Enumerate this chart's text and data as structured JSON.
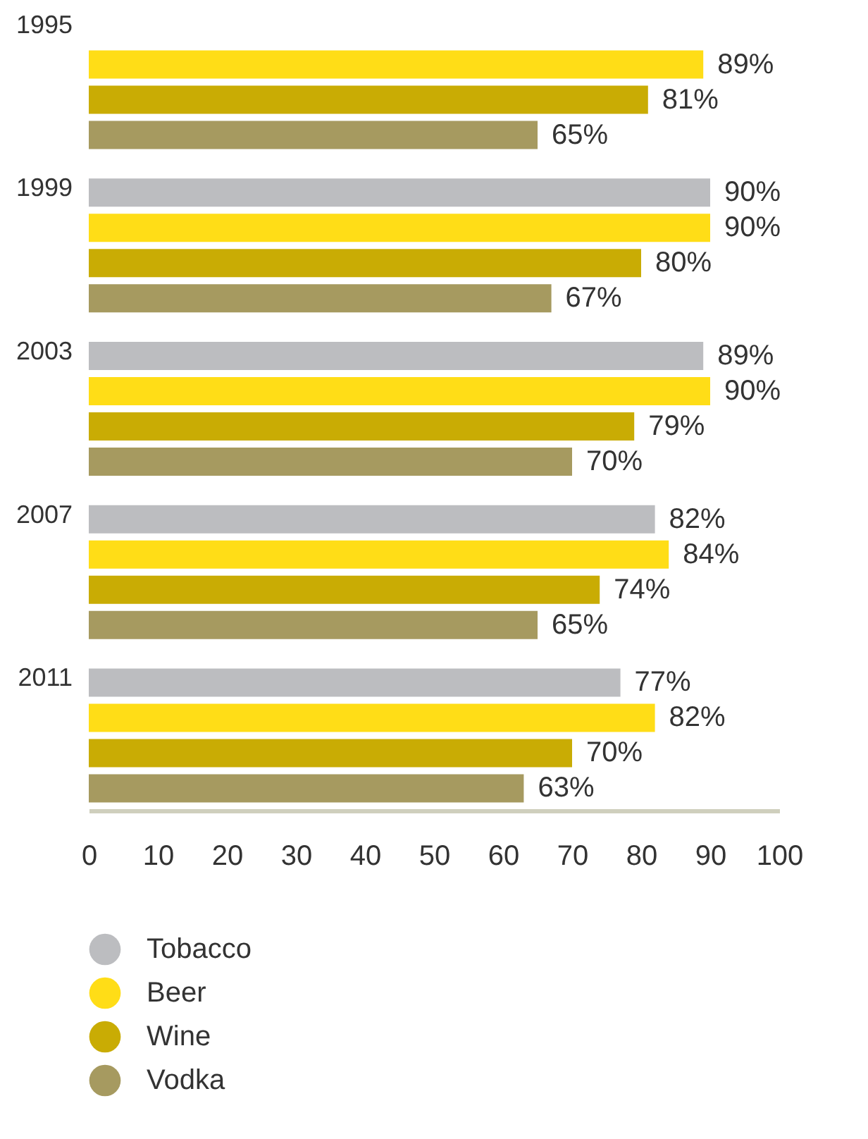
{
  "chart_data": {
    "type": "bar",
    "orientation": "horizontal",
    "categories": [
      "1995",
      "1999",
      "2003",
      "2007",
      "2011"
    ],
    "series": [
      {
        "name": "Tobacco",
        "color": "#bcbdc0",
        "values": [
          null,
          90,
          89,
          82,
          77
        ],
        "value_labels": [
          null,
          "90%",
          "89%",
          "82%",
          "77%"
        ]
      },
      {
        "name": "Beer",
        "color": "#ffdd17",
        "values": [
          89,
          90,
          90,
          84,
          82
        ],
        "value_labels": [
          "89%",
          "90%",
          "90%",
          "84%",
          "82%"
        ]
      },
      {
        "name": "Wine",
        "color": "#c9ac04",
        "values": [
          81,
          80,
          79,
          74,
          70
        ],
        "value_labels": [
          "81%",
          "80%",
          "79%",
          "74%",
          "70%"
        ]
      },
      {
        "name": "Vodka",
        "color": "#a69a60",
        "values": [
          65,
          67,
          70,
          65,
          63
        ],
        "value_labels": [
          "65%",
          "67%",
          "70%",
          "65%",
          "63%"
        ]
      }
    ],
    "xlim": [
      0,
      100
    ],
    "xticks": [
      0,
      10,
      20,
      30,
      40,
      50,
      60,
      70,
      80,
      90,
      100
    ],
    "grid": false,
    "legend": "bottom left"
  }
}
